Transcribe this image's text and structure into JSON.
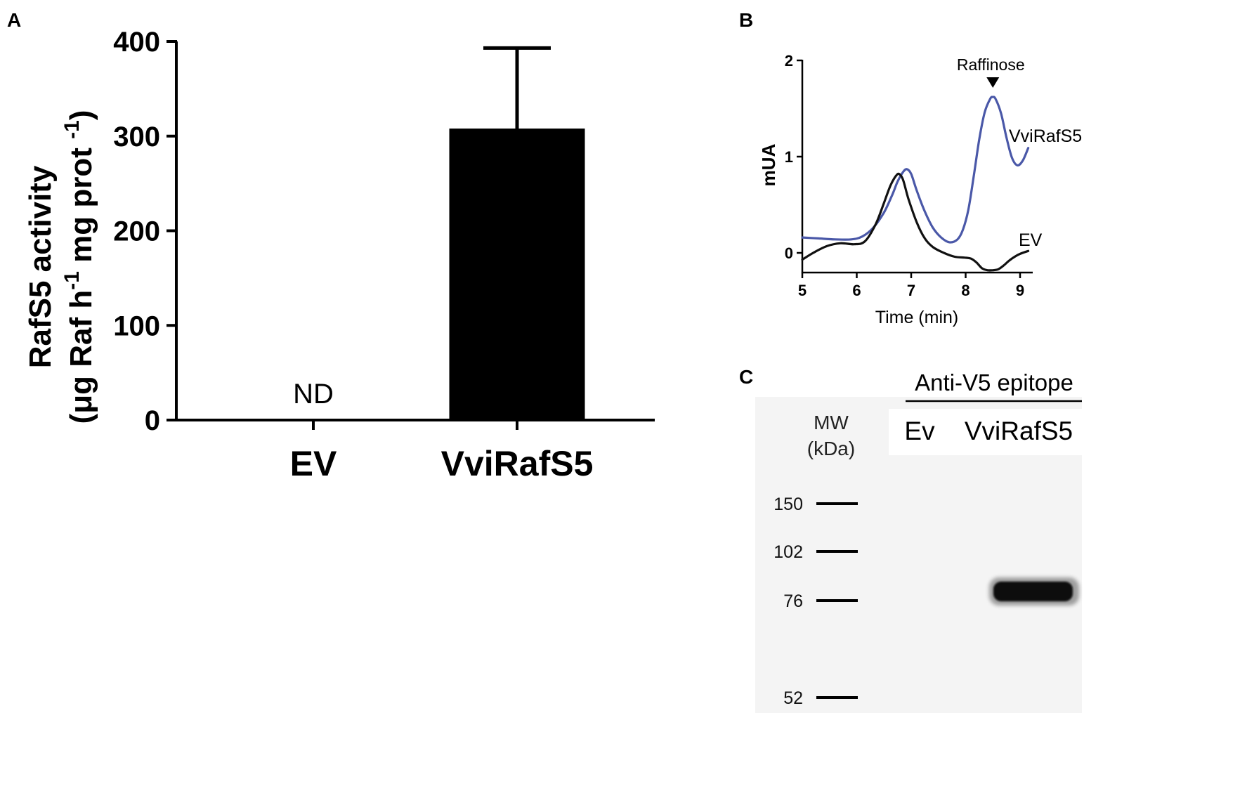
{
  "panels": {
    "a": {
      "letter": "A"
    },
    "b": {
      "letter": "B"
    },
    "c": {
      "letter": "C"
    }
  },
  "chart_data": [
    {
      "panel": "A",
      "type": "bar",
      "categories": [
        "EV",
        "VviRafS5"
      ],
      "values": [
        0,
        308
      ],
      "error_upper": [
        null,
        393
      ],
      "bar_labels": [
        "ND",
        ""
      ],
      "ylim": [
        0,
        400
      ],
      "yticks": [
        0,
        100,
        200,
        300,
        400
      ],
      "ytick_labels": [
        "0",
        "100",
        "200",
        "300",
        "400"
      ],
      "ylabel_line1": "RafS5 activity",
      "ylabel_line2_parts": {
        "a": "(μg Raf h",
        "sup1": "-1",
        "b": " mg prot ",
        "sup2": "-1",
        "c": ")"
      },
      "bar_color": "#000000"
    },
    {
      "panel": "B",
      "type": "line",
      "xlabel": "Time (min)",
      "ylabel": "mUA",
      "xlim": [
        5,
        9.2
      ],
      "ylim": [
        -0.2,
        2
      ],
      "xticks": [
        5,
        6,
        7,
        8,
        9
      ],
      "xtick_labels": [
        "5",
        "6",
        "7",
        "8",
        "9"
      ],
      "yticks": [
        0,
        1,
        2
      ],
      "ytick_labels": [
        "0",
        "1",
        "2"
      ],
      "annotation": "Raffinose",
      "annotation_x": 8.5,
      "series": [
        {
          "name": "VviRafS5",
          "color": "#4a58a8",
          "x": [
            5.0,
            5.3,
            5.6,
            5.9,
            6.1,
            6.3,
            6.5,
            6.65,
            6.75,
            6.85,
            6.92,
            7.0,
            7.1,
            7.25,
            7.4,
            7.55,
            7.7,
            7.85,
            7.95,
            8.05,
            8.15,
            8.25,
            8.35,
            8.45,
            8.5,
            8.55,
            8.65,
            8.75,
            8.85,
            8.95,
            9.05,
            9.15
          ],
          "y": [
            0.16,
            0.15,
            0.14,
            0.14,
            0.17,
            0.26,
            0.42,
            0.6,
            0.74,
            0.84,
            0.87,
            0.82,
            0.65,
            0.43,
            0.26,
            0.16,
            0.11,
            0.14,
            0.24,
            0.45,
            0.8,
            1.18,
            1.46,
            1.6,
            1.62,
            1.6,
            1.45,
            1.2,
            0.99,
            0.91,
            0.96,
            1.09
          ]
        },
        {
          "name": "EV",
          "color": "#111111",
          "x": [
            5.0,
            5.2,
            5.45,
            5.7,
            5.95,
            6.15,
            6.35,
            6.5,
            6.62,
            6.72,
            6.78,
            6.85,
            6.95,
            7.1,
            7.25,
            7.4,
            7.6,
            7.8,
            8.0,
            8.1,
            8.2,
            8.3,
            8.4,
            8.5,
            8.6,
            8.7,
            8.8,
            8.9,
            9.0,
            9.15
          ],
          "y": [
            -0.07,
            0.0,
            0.07,
            0.1,
            0.09,
            0.12,
            0.3,
            0.52,
            0.7,
            0.8,
            0.82,
            0.76,
            0.56,
            0.32,
            0.15,
            0.06,
            0.0,
            -0.04,
            -0.05,
            -0.06,
            -0.1,
            -0.16,
            -0.18,
            -0.18,
            -0.17,
            -0.13,
            -0.08,
            -0.04,
            -0.01,
            0.02
          ]
        }
      ]
    },
    {
      "panel": "C",
      "type": "blot",
      "heading": "Anti-V5 epitope",
      "lanes": [
        "Ev",
        "VviRafS5"
      ],
      "mw_label_1": "MW",
      "mw_label_2": "(kDa)",
      "markers": [
        "150",
        "102",
        "76",
        "52"
      ],
      "band": {
        "lane": "VviRafS5",
        "kda": 80
      }
    }
  ]
}
